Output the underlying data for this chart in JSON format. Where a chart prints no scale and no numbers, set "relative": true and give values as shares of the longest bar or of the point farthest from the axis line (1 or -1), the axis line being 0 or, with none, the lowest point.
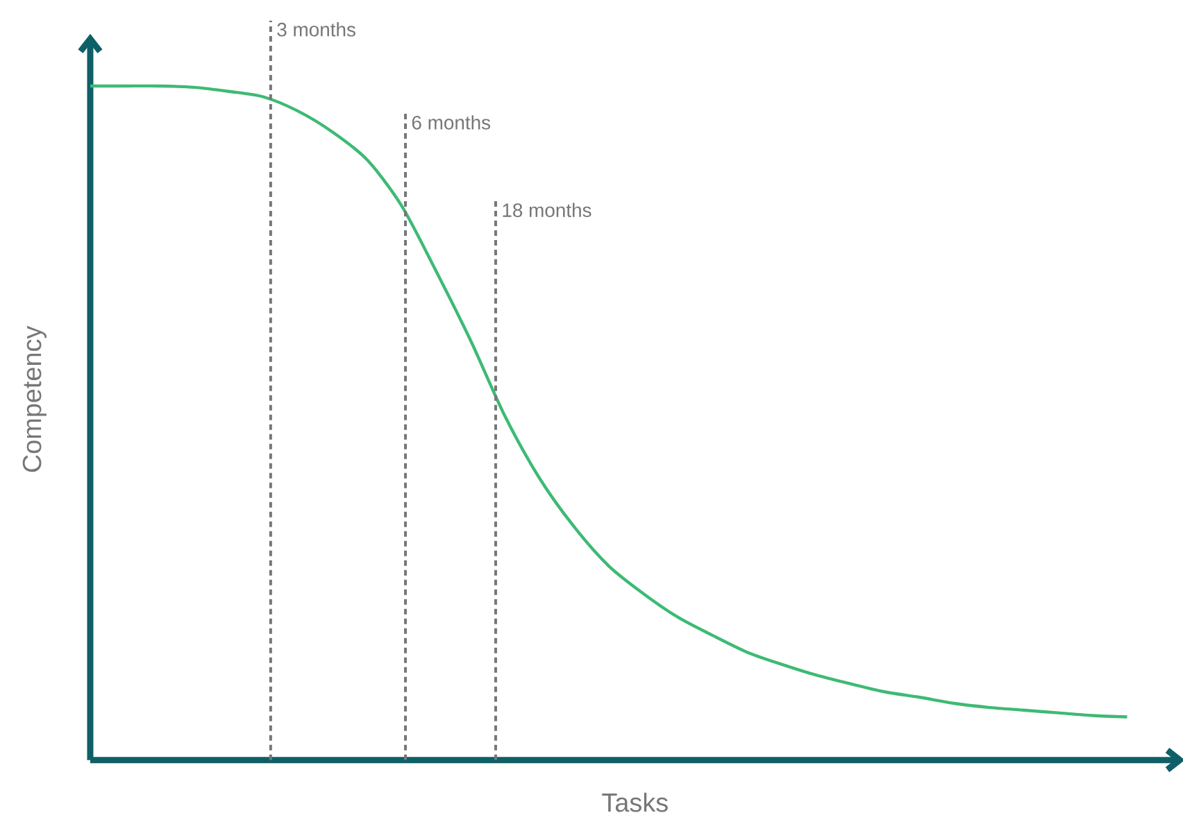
{
  "chart_data": {
    "type": "line",
    "relative": true,
    "xlabel": "Tasks",
    "ylabel": "Competency",
    "categories": [
      null,
      null,
      null,
      null,
      null,
      null,
      null,
      null,
      null,
      null,
      null,
      null,
      null,
      null,
      null,
      null,
      null,
      null,
      null,
      null,
      null,
      null,
      null,
      null,
      null,
      null,
      null,
      null,
      null,
      null,
      null
    ],
    "series": [
      {
        "color": "#3dba74",
        "values": [
          1.0,
          1.0,
          1.0,
          0.998,
          0.992,
          0.984,
          0.963,
          0.932,
          0.891,
          0.823,
          0.726,
          0.623,
          0.51,
          0.418,
          0.346,
          0.288,
          0.247,
          0.212,
          0.185,
          0.16,
          0.142,
          0.126,
          0.113,
          0.101,
          0.093,
          0.084,
          0.078,
          0.074,
          0.07,
          0.066,
          0.064
        ]
      }
    ],
    "annotations": [
      "3 months",
      "6 months",
      "18 months"
    ]
  }
}
